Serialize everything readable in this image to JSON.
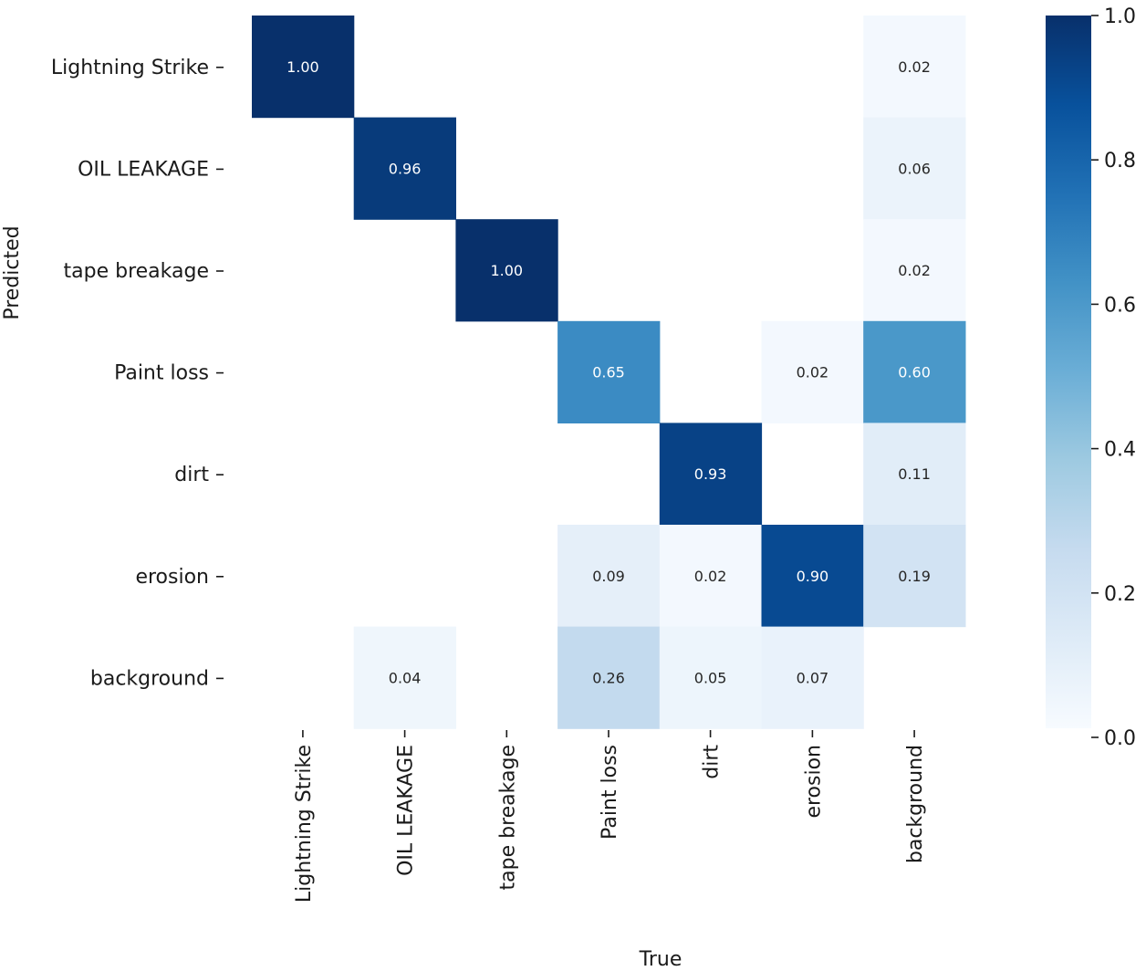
{
  "chart_data": {
    "type": "heatmap",
    "title": "",
    "xlabel": "True",
    "ylabel": "Predicted",
    "x_categories": [
      "Lightning Strike",
      "OIL LEAKAGE",
      "tape breakage",
      "Paint loss",
      "dirt",
      "erosion",
      "background"
    ],
    "y_categories": [
      "Lightning Strike",
      "OIL LEAKAGE",
      "tape breakage",
      "Paint loss",
      "dirt",
      "erosion",
      "background"
    ],
    "values": [
      [
        1.0,
        null,
        null,
        null,
        null,
        null,
        0.02
      ],
      [
        null,
        0.96,
        null,
        null,
        null,
        null,
        0.06
      ],
      [
        null,
        null,
        1.0,
        null,
        null,
        null,
        0.02
      ],
      [
        null,
        null,
        null,
        0.65,
        null,
        0.02,
        0.6
      ],
      [
        null,
        null,
        null,
        null,
        0.93,
        null,
        0.11
      ],
      [
        null,
        null,
        null,
        0.09,
        0.02,
        0.9,
        0.19
      ],
      [
        null,
        0.04,
        null,
        0.26,
        0.05,
        0.07,
        null
      ]
    ],
    "colorbar": {
      "min": 0.0,
      "max": 1.0,
      "ticks": [
        0.0,
        0.2,
        0.4,
        0.6,
        0.8,
        1.0
      ],
      "tick_labels": [
        "0.0",
        "0.2",
        "0.4",
        "0.6",
        "0.8",
        "1.0"
      ]
    },
    "colormap": "Blues"
  }
}
